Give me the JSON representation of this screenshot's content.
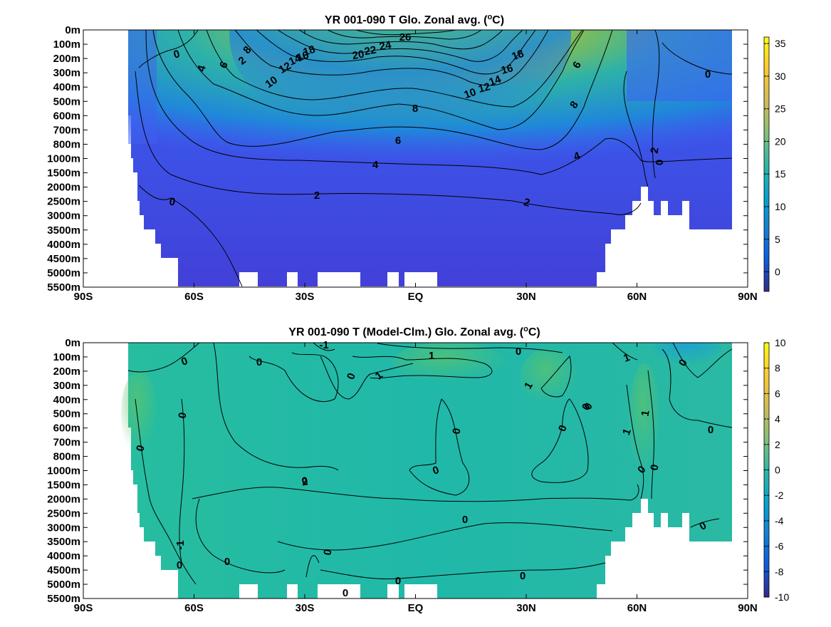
{
  "chart_data": [
    {
      "type": "heatmap",
      "title": "YR 001-090 T Glo. Zonal avg. (",
      "title_sup": "o",
      "title_end": "C)",
      "x_ticks": [
        "90S",
        "60S",
        "30S",
        "EQ",
        "30N",
        "60N",
        "90N"
      ],
      "x_values": [
        -90,
        -60,
        -30,
        0,
        30,
        60,
        90
      ],
      "y_ticks": [
        "0m",
        "100m",
        "200m",
        "300m",
        "400m",
        "500m",
        "600m",
        "700m",
        "800m",
        "1000m",
        "1500m",
        "2000m",
        "2500m",
        "3000m",
        "3500m",
        "4000m",
        "4500m",
        "5000m",
        "5500m"
      ],
      "colorbar": {
        "min": -3,
        "max": 36,
        "ticks": [
          0,
          5,
          10,
          15,
          20,
          25,
          30,
          35
        ]
      },
      "colormap": "parula",
      "contour_labels": [
        "26",
        "24",
        "22",
        "20",
        "18",
        "16",
        "14",
        "12",
        "10",
        "8",
        "6",
        "4",
        "2",
        "0",
        "18",
        "16",
        "14",
        "12",
        "10",
        "8",
        "6",
        "4",
        "2",
        "0",
        "6",
        "8",
        "4",
        "2",
        "0",
        "2",
        "0"
      ]
    },
    {
      "type": "heatmap",
      "title": "YR 001-090 T (Model-Clm.) Glo. Zonal avg. (",
      "title_sup": "o",
      "title_end": "C)",
      "x_ticks": [
        "90S",
        "60S",
        "30S",
        "EQ",
        "30N",
        "60N",
        "90N"
      ],
      "x_values": [
        -90,
        -60,
        -30,
        0,
        30,
        60,
        90
      ],
      "y_ticks": [
        "0m",
        "100m",
        "200m",
        "300m",
        "400m",
        "500m",
        "600m",
        "700m",
        "800m",
        "1000m",
        "1500m",
        "2000m",
        "2500m",
        "3000m",
        "3500m",
        "4000m",
        "4500m",
        "5000m",
        "5500m"
      ],
      "colorbar": {
        "min": -10,
        "max": 10,
        "ticks": [
          10,
          8,
          6,
          4,
          2,
          0,
          -2,
          -4,
          -6,
          -8,
          -10
        ]
      },
      "colormap": "parula",
      "contour_labels": [
        "-1",
        "1",
        "0",
        "0",
        "0",
        "0",
        "1",
        "0",
        "1",
        "0",
        "0",
        "0",
        "0",
        "0",
        "2",
        "1",
        "1",
        "1",
        "0",
        "0",
        "0",
        "0",
        "0",
        "0",
        "0",
        "0",
        "0",
        "0",
        "-1",
        "0",
        "0",
        "0",
        "0"
      ]
    }
  ]
}
